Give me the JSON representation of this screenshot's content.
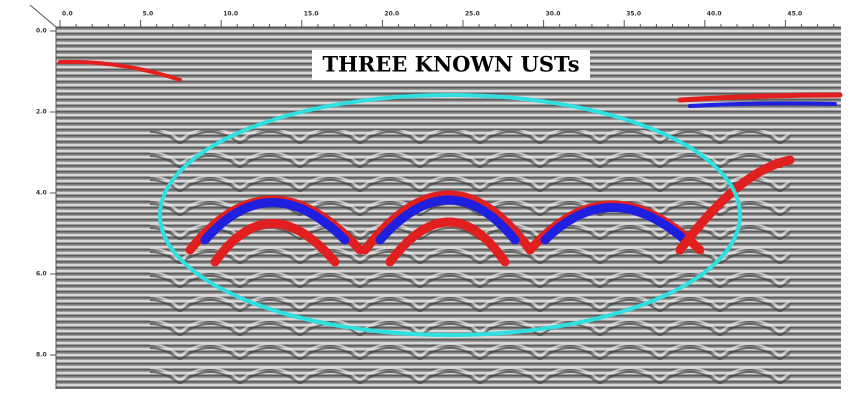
{
  "annotation": "THREE KNOWN USTs",
  "x_axis": {
    "ticks": [
      "0.0",
      "5.0",
      "10.0",
      "15.0",
      "20.0",
      "25.0",
      "30.0",
      "35.0",
      "40.0",
      "45.0"
    ]
  },
  "y_axis": {
    "ticks": [
      "0.0",
      "2.0",
      "4.0",
      "6.0",
      "8.0"
    ]
  }
}
